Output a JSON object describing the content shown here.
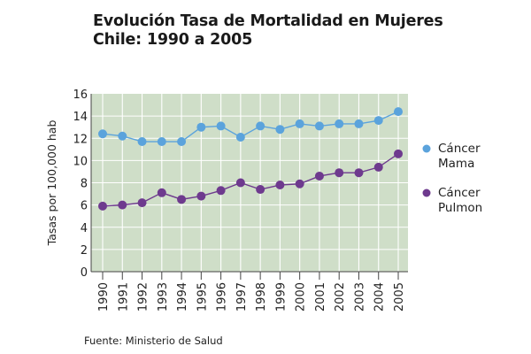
{
  "title_line1": "Evolución Tasa de Mortalidad en Mujeres",
  "title_line2": "Chile: 1990 a 2005",
  "source": "Fuente: Ministerio de Salud",
  "chart_data": {
    "type": "line",
    "title": "Evolución Tasa de Mortalidad en Mujeres Chile: 1990 a 2005",
    "ylabel": "Tasas por 100,000 hab",
    "xlabel": "",
    "ylim": [
      0,
      16
    ],
    "yticks": [
      "0",
      "2",
      "4",
      "6",
      "8",
      "10",
      "12",
      "14",
      "16"
    ],
    "categories": [
      "1990",
      "1991",
      "1992",
      "1993",
      "1994",
      "1995",
      "1996",
      "1997",
      "1998",
      "1999",
      "2000",
      "2001",
      "2002",
      "2003",
      "2004",
      "2005"
    ],
    "grid": true,
    "legend_position": "right",
    "background_color": "#cfdec8",
    "series": [
      {
        "name_line1": "Cáncer",
        "name_line2": "Mama",
        "color": "#5ba3dc",
        "values": [
          12.4,
          12.2,
          11.7,
          11.7,
          11.7,
          13.0,
          13.1,
          12.1,
          13.1,
          12.8,
          13.3,
          13.1,
          13.3,
          13.3,
          13.6,
          14.4
        ]
      },
      {
        "name_line1": "Cáncer",
        "name_line2": "Pulmon",
        "color": "#6e3a8e",
        "values": [
          5.9,
          6.0,
          6.2,
          7.1,
          6.5,
          6.8,
          7.3,
          8.0,
          7.4,
          7.8,
          7.9,
          8.6,
          8.9,
          8.9,
          9.4,
          10.6
        ]
      }
    ]
  }
}
